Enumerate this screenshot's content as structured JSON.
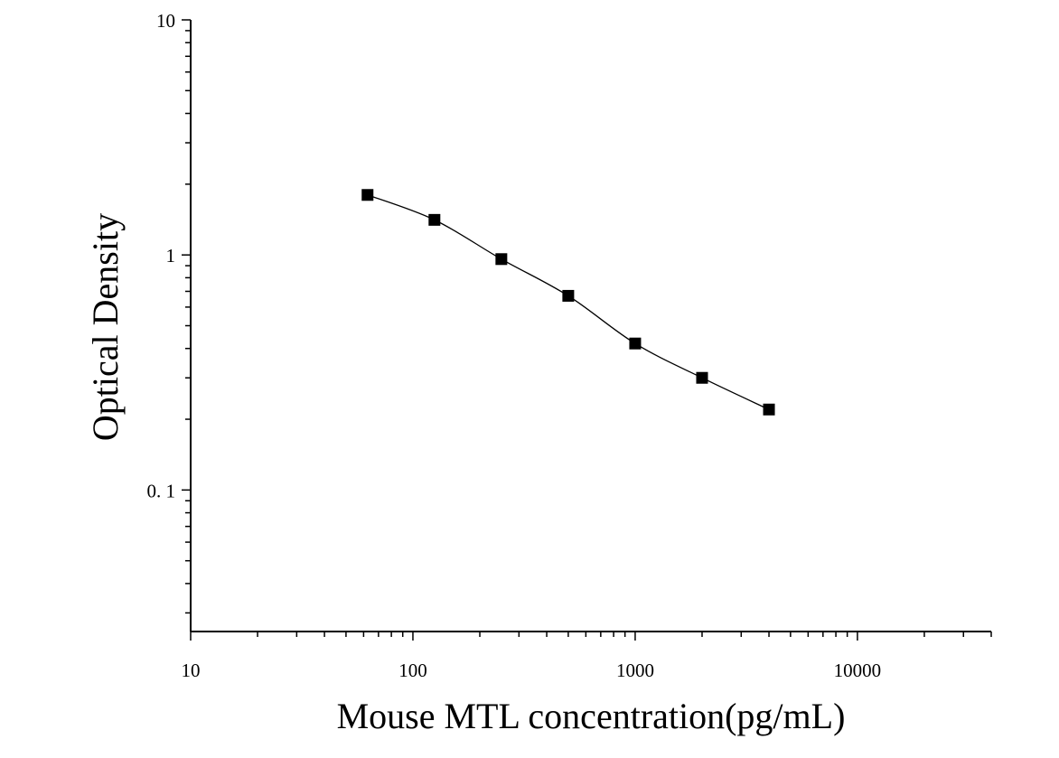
{
  "chart_data": {
    "type": "scatter",
    "title": "",
    "xlabel": "Mouse MTL concentration(pg/mL)",
    "ylabel": "Optical Density",
    "x_scale": "log",
    "y_scale": "log",
    "xlim": [
      10,
      40000
    ],
    "ylim": [
      0.025,
      10
    ],
    "x_ticks": [
      10,
      100,
      1000,
      10000
    ],
    "x_tick_labels": [
      "10",
      "100",
      "1000",
      "10000"
    ],
    "y_ticks": [
      0.1,
      1,
      10
    ],
    "y_tick_labels": [
      "0. 1",
      "1",
      "10"
    ],
    "grid": false,
    "legend": "none",
    "series": [
      {
        "marker": "square",
        "color": "#000000",
        "fit_line": "smooth curve",
        "x": [
          62.5,
          125,
          250,
          500,
          1000,
          2000,
          4000
        ],
        "y": [
          1.8,
          1.41,
          0.96,
          0.67,
          0.42,
          0.3,
          0.22
        ]
      }
    ]
  }
}
